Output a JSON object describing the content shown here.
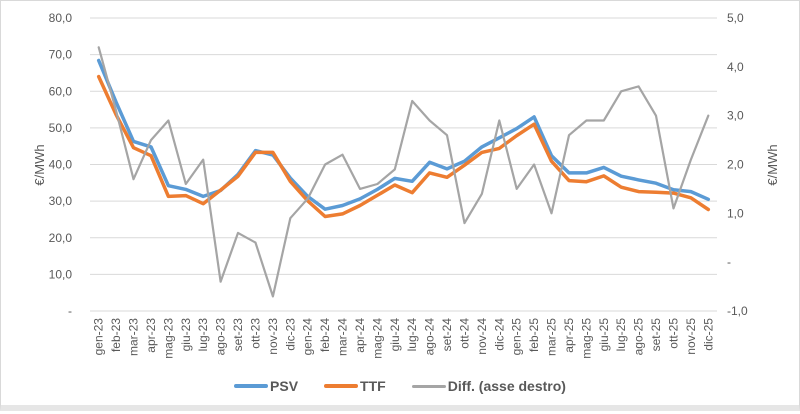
{
  "chart_data": {
    "type": "line",
    "title": "",
    "xlabel": "",
    "ylabel": "€/MWh",
    "ylabel_right": "€/MWh",
    "ylim": [
      0,
      80
    ],
    "ylim_right": [
      -1,
      5
    ],
    "grid": true,
    "legend_position": "bottom",
    "y_ticks": [
      "-",
      "10,0",
      "20,0",
      "30,0",
      "40,0",
      "50,0",
      "60,0",
      "70,0",
      "80,0"
    ],
    "y_tick_values": [
      0,
      10,
      20,
      30,
      40,
      50,
      60,
      70,
      80
    ],
    "y_right_ticks": [
      "-1,0",
      "-",
      "1,0",
      "2,0",
      "3,0",
      "4,0",
      "5,0"
    ],
    "y_right_tick_values": [
      -1,
      0,
      1,
      2,
      3,
      4,
      5
    ],
    "categories": [
      "gen-23",
      "feb-23",
      "mar-23",
      "apr-23",
      "mag-23",
      "giu-23",
      "lug-23",
      "ago-23",
      "set-23",
      "ott-23",
      "nov-23",
      "dic-23",
      "gen-24",
      "feb-24",
      "mar-24",
      "apr-24",
      "mag-24",
      "giu-24",
      "lug-24",
      "ago-24",
      "set-24",
      "ott-24",
      "nov-24",
      "dic-24",
      "gen-25",
      "feb-25",
      "mar-25",
      "apr-25",
      "mag-25",
      "giu-25",
      "lug-25",
      "ago-25",
      "set-25",
      "ott-25",
      "nov-25",
      "dic-25"
    ],
    "series": [
      {
        "name": "PSV",
        "axis": "left",
        "color": "#5b9bd5",
        "values": [
          68.4,
          57.0,
          46.3,
          44.8,
          34.2,
          33.2,
          31.3,
          32.9,
          37.3,
          43.8,
          42.6,
          36.3,
          31.3,
          27.8,
          28.8,
          30.6,
          33.2,
          36.2,
          35.4,
          40.6,
          38.8,
          40.9,
          44.8,
          47.3,
          49.8,
          53.0,
          42.4,
          37.7,
          37.7,
          39.2,
          36.8,
          35.8,
          34.9,
          33.1,
          32.6,
          30.5
        ]
      },
      {
        "name": "TTF",
        "axis": "left",
        "color": "#ed7d31",
        "values": [
          64.0,
          53.6,
          44.6,
          42.4,
          31.3,
          31.5,
          29.3,
          33.0,
          36.8,
          43.3,
          43.3,
          35.4,
          30.1,
          25.8,
          26.5,
          28.8,
          31.6,
          34.4,
          32.3,
          37.7,
          36.5,
          39.8,
          43.3,
          44.4,
          47.9,
          51.0,
          40.9,
          35.6,
          35.3,
          36.9,
          33.8,
          32.6,
          32.4,
          32.2,
          30.9,
          27.7
        ]
      },
      {
        "name": "Diff. (asse destro)",
        "axis": "right",
        "color": "#a5a5a5",
        "values": [
          4.4,
          3.1,
          1.7,
          2.5,
          2.9,
          1.6,
          2.1,
          -0.4,
          0.6,
          0.4,
          -0.7,
          0.9,
          1.3,
          2.0,
          2.2,
          1.5,
          1.6,
          1.9,
          3.3,
          2.9,
          2.6,
          0.8,
          1.4,
          2.9,
          1.5,
          2.0,
          1.0,
          2.6,
          2.9,
          2.9,
          3.5,
          3.6,
          3.0,
          1.1,
          2.1,
          3.0
        ]
      }
    ]
  },
  "legend": {
    "items": [
      {
        "label": "PSV",
        "color": "#5b9bd5"
      },
      {
        "label": "TTF",
        "color": "#ed7d31"
      },
      {
        "label": "Diff. (asse destro)",
        "color": "#a5a5a5"
      }
    ]
  }
}
